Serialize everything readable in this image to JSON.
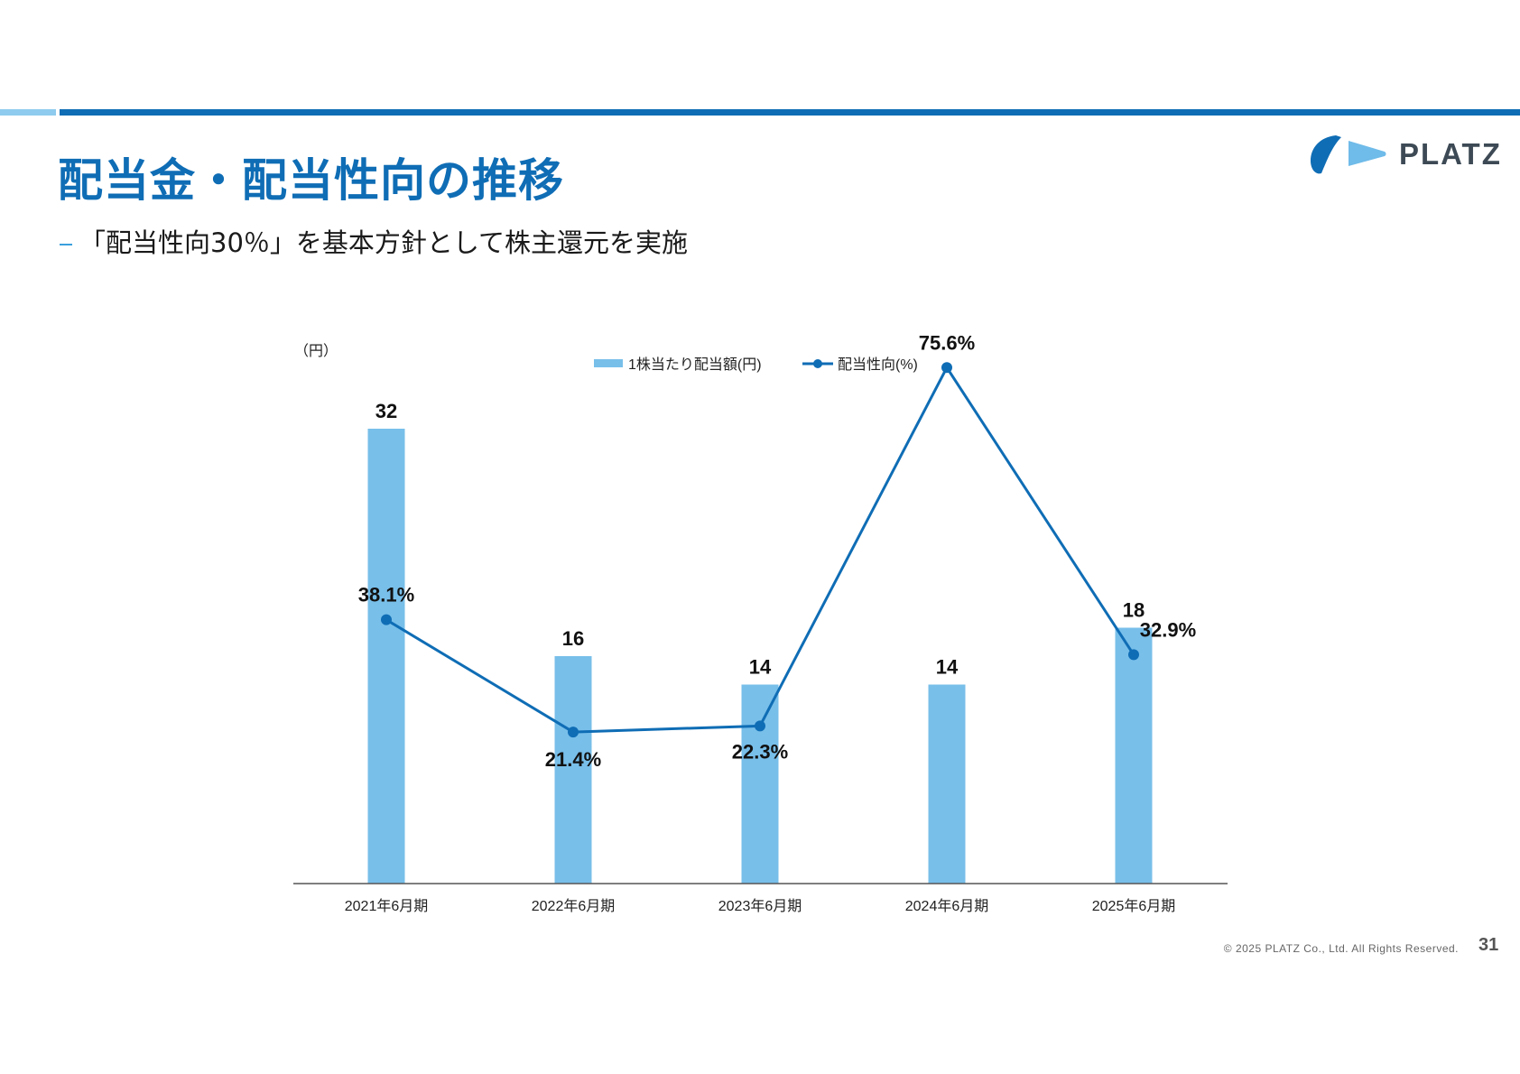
{
  "header": {
    "title": "配当金・配当性向の推移",
    "subtitle": "「配当性向30％」を基本方針として株主還元を実施"
  },
  "logo": {
    "text": "PLATZ",
    "icon": "platz-logo-icon",
    "colors": {
      "dark": "#0f6db5",
      "light": "#6fbbe9"
    }
  },
  "chart_data": {
    "type": "bar",
    "categories": [
      "2021年6月期",
      "2022年6月期",
      "2023年6月期",
      "2024年6月期",
      "2025年6月期"
    ],
    "y_unit_label": "（円）",
    "series": [
      {
        "name": "1株当たり配当額(円)",
        "type": "bar",
        "values": [
          32,
          16,
          14,
          14,
          18
        ],
        "labels": [
          "32",
          "16",
          "14",
          "14",
          "18"
        ],
        "color": "#78bfea"
      },
      {
        "name": "配当性向(%)",
        "type": "line",
        "values": [
          38.1,
          21.4,
          22.3,
          75.6,
          32.9
        ],
        "labels": [
          "38.1%",
          "21.4%",
          "22.3%",
          "75.6%",
          "32.9%"
        ],
        "color": "#0f6db5"
      }
    ],
    "ylim_bar": [
      0,
      34
    ],
    "ylim_line": [
      0,
      80
    ],
    "grid": false,
    "legend": "top-center"
  },
  "footer": {
    "copyright": "© 2025 PLATZ Co., Ltd. All Rights Reserved.",
    "page_number": "31"
  }
}
